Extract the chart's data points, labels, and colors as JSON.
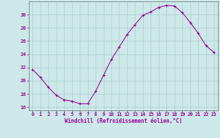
{
  "x": [
    0,
    1,
    2,
    3,
    4,
    5,
    6,
    7,
    8,
    9,
    10,
    11,
    12,
    13,
    14,
    15,
    16,
    17,
    18,
    19,
    20,
    21,
    22,
    23
  ],
  "y": [
    21.7,
    20.5,
    19.0,
    17.8,
    17.1,
    16.9,
    16.5,
    16.5,
    18.4,
    20.8,
    23.2,
    25.1,
    27.0,
    28.5,
    29.9,
    30.4,
    31.1,
    31.4,
    31.3,
    30.3,
    28.8,
    27.2,
    25.3,
    24.3
  ],
  "line_color": "#990099",
  "marker": "+",
  "marker_size": 3,
  "marker_linewidth": 0.8,
  "background_color": "#cce8e8",
  "grid_color": "#aacccc",
  "xlabel": "Windchill (Refroidissement éolien,°C)",
  "xlabel_color": "#990099",
  "tick_color": "#990099",
  "ylim": [
    15.5,
    32.0
  ],
  "xlim": [
    -0.5,
    23.5
  ],
  "yticks": [
    16,
    18,
    20,
    22,
    24,
    26,
    28,
    30
  ],
  "xticks": [
    0,
    1,
    2,
    3,
    4,
    5,
    6,
    7,
    8,
    9,
    10,
    11,
    12,
    13,
    14,
    15,
    16,
    17,
    18,
    19,
    20,
    21,
    22,
    23
  ],
  "tick_fontsize": 5.0,
  "xlabel_fontsize": 5.5,
  "linewidth": 0.8
}
